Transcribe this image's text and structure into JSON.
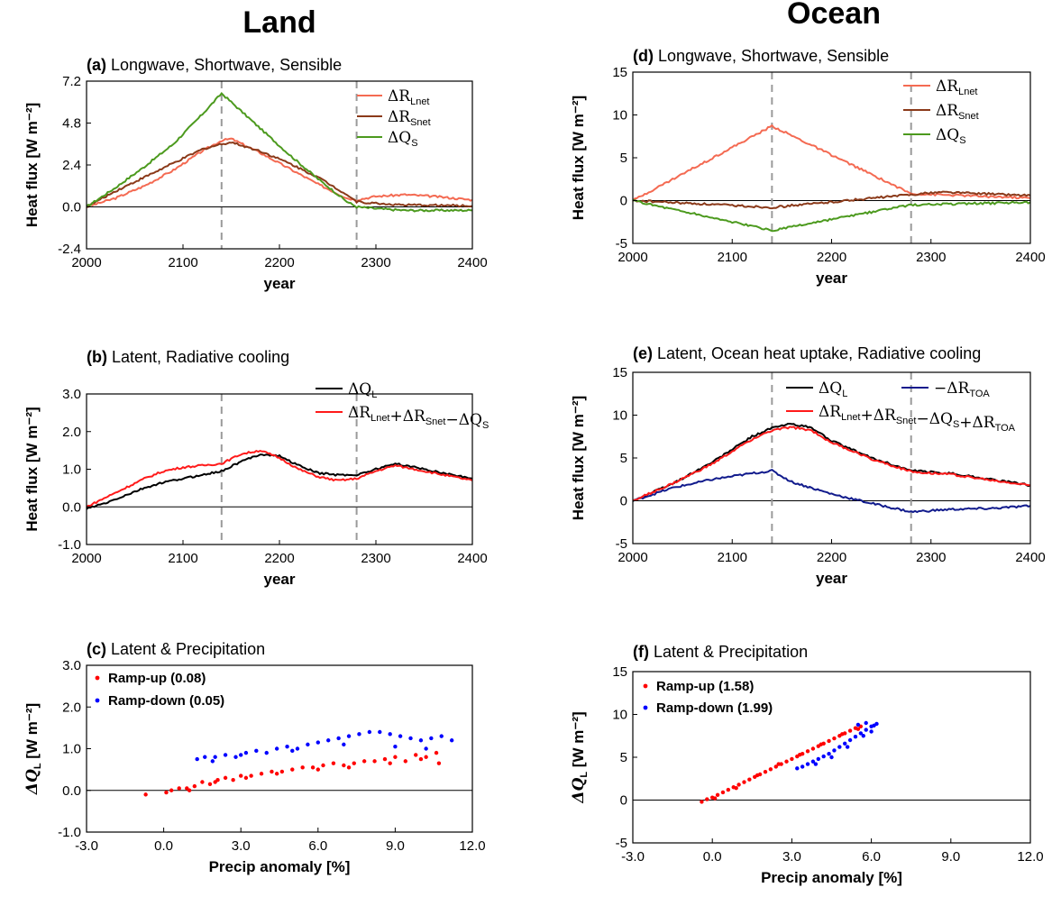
{
  "columns": [
    {
      "title": "Land"
    },
    {
      "title": "Ocean"
    }
  ],
  "colors": {
    "lw": "#f46a52",
    "sw": "#8b3a1a",
    "qs": "#4c9a1e",
    "latent": "#000000",
    "residual": "#ff1a1a",
    "toa": "#101a8c",
    "ramp_up": "#ff0000",
    "ramp_down": "#0000ff",
    "marker_line": "#9a9a9a"
  },
  "chart_data": [
    {
      "id": "a",
      "type": "line",
      "tag": "(a)",
      "title": "Longwave, Shortwave, Sensible",
      "xlabel": "year",
      "ylabel": "Heat flux [W m⁻²]",
      "xlim": [
        2000,
        2400
      ],
      "ylim": [
        -2.4,
        7.2
      ],
      "xticks": [
        "2000",
        "2100",
        "2200",
        "2300",
        "2400"
      ],
      "yticks": [
        "-2.4",
        "0.0",
        "2.4",
        "4.8",
        "7.2"
      ],
      "vlines": [
        2140,
        2280
      ],
      "series": [
        {
          "name": "ΔR",
          "sub": "Lnet",
          "color_key": "lw",
          "x": [
            2000,
            2030,
            2060,
            2090,
            2120,
            2140,
            2150,
            2180,
            2210,
            2240,
            2270,
            2280,
            2300,
            2330,
            2360,
            2400
          ],
          "y": [
            0.0,
            0.5,
            1.2,
            2.1,
            3.2,
            3.8,
            3.9,
            3.1,
            2.2,
            1.3,
            0.5,
            0.4,
            0.6,
            0.7,
            0.6,
            0.4
          ]
        },
        {
          "name": "ΔR",
          "sub": "Snet",
          "color_key": "sw",
          "x": [
            2000,
            2030,
            2060,
            2090,
            2120,
            2140,
            2150,
            2180,
            2210,
            2240,
            2270,
            2280,
            2300,
            2330,
            2360,
            2400
          ],
          "y": [
            0.0,
            0.9,
            1.7,
            2.5,
            3.3,
            3.6,
            3.7,
            3.2,
            2.5,
            1.7,
            0.7,
            0.3,
            0.2,
            0.1,
            0.1,
            0.05
          ]
        },
        {
          "name": "ΔQ",
          "sub": "S",
          "color_key": "qs",
          "x": [
            2000,
            2030,
            2060,
            2090,
            2120,
            2140,
            2150,
            2180,
            2210,
            2240,
            2270,
            2280,
            2300,
            2330,
            2360,
            2400
          ],
          "y": [
            0.0,
            1.1,
            2.3,
            3.6,
            5.3,
            6.5,
            6.0,
            4.5,
            3.0,
            1.6,
            0.3,
            0.0,
            -0.1,
            -0.2,
            -0.2,
            -0.2
          ]
        }
      ]
    },
    {
      "id": "b",
      "type": "line",
      "tag": "(b)",
      "title": "Latent, Radiative cooling",
      "xlabel": "year",
      "ylabel": "Heat flux [W m⁻²]",
      "xlim": [
        2000,
        2400
      ],
      "ylim": [
        -1.0,
        3.0
      ],
      "xticks": [
        "2000",
        "2100",
        "2200",
        "2300",
        "2400"
      ],
      "yticks": [
        "-1.0",
        "0.0",
        "1.0",
        "2.0",
        "3.0"
      ],
      "vlines": [
        2140,
        2280
      ],
      "series": [
        {
          "name": "ΔQ",
          "sub": "L",
          "color_key": "latent",
          "x": [
            2000,
            2020,
            2040,
            2060,
            2080,
            2100,
            2120,
            2140,
            2160,
            2180,
            2200,
            2220,
            2240,
            2260,
            2280,
            2300,
            2320,
            2340,
            2360,
            2380,
            2400
          ],
          "y": [
            -0.05,
            0.1,
            0.3,
            0.5,
            0.65,
            0.75,
            0.85,
            0.95,
            1.2,
            1.4,
            1.35,
            1.1,
            0.9,
            0.85,
            0.85,
            1.0,
            1.15,
            1.05,
            0.95,
            0.85,
            0.75
          ]
        },
        {
          "name": "ΔR",
          "sub": "Lnet",
          "expr": "ΔR_Lnet+ΔR_Snet−ΔQ_S",
          "color_key": "residual",
          "x": [
            2000,
            2020,
            2040,
            2060,
            2080,
            2100,
            2120,
            2140,
            2160,
            2180,
            2200,
            2220,
            2240,
            2260,
            2280,
            2300,
            2320,
            2340,
            2360,
            2380,
            2400
          ],
          "y": [
            0.0,
            0.25,
            0.5,
            0.75,
            0.95,
            1.05,
            1.1,
            1.15,
            1.4,
            1.5,
            1.3,
            1.0,
            0.8,
            0.7,
            0.75,
            0.95,
            1.1,
            1.0,
            0.9,
            0.8,
            0.7
          ]
        }
      ]
    },
    {
      "id": "c",
      "type": "scatter",
      "tag": "(c)",
      "title": "Latent & Precipitation",
      "xlabel": "Precip anomaly [%]",
      "ylabel": "ΔQL [W m⁻²]",
      "xlim": [
        -3.0,
        12.0
      ],
      "ylim": [
        -1.0,
        3.0
      ],
      "xticks": [
        "-3.0",
        "0.0",
        "3.0",
        "6.0",
        "9.0",
        "12.0"
      ],
      "yticks": [
        "-1.0",
        "0.0",
        "1.0",
        "2.0",
        "3.0"
      ],
      "series": [
        {
          "name": "Ramp-up (0.08)",
          "color_key": "ramp_up",
          "points": [
            [
              -0.7,
              -0.1
            ],
            [
              0.1,
              -0.05
            ],
            [
              0.3,
              0.0
            ],
            [
              0.6,
              0.05
            ],
            [
              0.9,
              0.05
            ],
            [
              1.2,
              0.1
            ],
            [
              1.5,
              0.2
            ],
            [
              1.8,
              0.15
            ],
            [
              2.1,
              0.25
            ],
            [
              2.4,
              0.3
            ],
            [
              2.7,
              0.25
            ],
            [
              3.0,
              0.35
            ],
            [
              3.4,
              0.35
            ],
            [
              3.8,
              0.4
            ],
            [
              4.2,
              0.45
            ],
            [
              4.6,
              0.45
            ],
            [
              5.0,
              0.5
            ],
            [
              5.4,
              0.55
            ],
            [
              5.8,
              0.55
            ],
            [
              6.2,
              0.6
            ],
            [
              6.6,
              0.65
            ],
            [
              7.0,
              0.6
            ],
            [
              7.4,
              0.65
            ],
            [
              7.8,
              0.7
            ],
            [
              8.2,
              0.7
            ],
            [
              8.6,
              0.75
            ],
            [
              9.0,
              0.8
            ],
            [
              9.4,
              0.7
            ],
            [
              9.8,
              0.85
            ],
            [
              10.2,
              0.8
            ],
            [
              10.6,
              0.9
            ],
            [
              1.0,
              0.0
            ],
            [
              2.0,
              0.2
            ],
            [
              3.2,
              0.3
            ],
            [
              4.4,
              0.4
            ],
            [
              6.0,
              0.5
            ],
            [
              7.2,
              0.55
            ],
            [
              8.8,
              0.65
            ],
            [
              10.0,
              0.75
            ],
            [
              10.7,
              0.65
            ]
          ]
        },
        {
          "name": "Ramp-down (0.05)",
          "color_key": "ramp_down",
          "points": [
            [
              1.3,
              0.75
            ],
            [
              1.6,
              0.8
            ],
            [
              2.0,
              0.8
            ],
            [
              2.4,
              0.85
            ],
            [
              2.8,
              0.8
            ],
            [
              3.2,
              0.9
            ],
            [
              3.6,
              0.95
            ],
            [
              4.0,
              0.9
            ],
            [
              4.4,
              1.0
            ],
            [
              4.8,
              1.05
            ],
            [
              5.2,
              1.0
            ],
            [
              5.6,
              1.1
            ],
            [
              6.0,
              1.15
            ],
            [
              6.4,
              1.2
            ],
            [
              6.8,
              1.25
            ],
            [
              7.2,
              1.3
            ],
            [
              7.6,
              1.35
            ],
            [
              8.0,
              1.4
            ],
            [
              8.4,
              1.4
            ],
            [
              8.8,
              1.35
            ],
            [
              9.2,
              1.3
            ],
            [
              9.6,
              1.25
            ],
            [
              10.0,
              1.2
            ],
            [
              10.4,
              1.25
            ],
            [
              10.8,
              1.3
            ],
            [
              11.2,
              1.2
            ],
            [
              1.9,
              0.7
            ],
            [
              3.0,
              0.85
            ],
            [
              5.0,
              0.95
            ],
            [
              7.0,
              1.1
            ],
            [
              9.0,
              1.05
            ],
            [
              10.2,
              1.0
            ]
          ]
        }
      ]
    },
    {
      "id": "d",
      "type": "line",
      "tag": "(d)",
      "title": "Longwave, Shortwave, Sensible",
      "xlabel": "year",
      "ylabel": "Heat flux [W m⁻²]",
      "xlim": [
        2000,
        2400
      ],
      "ylim": [
        -5,
        15
      ],
      "xticks": [
        "2000",
        "2100",
        "2200",
        "2300",
        "2400"
      ],
      "yticks": [
        "-5",
        "0",
        "5",
        "10",
        "15"
      ],
      "vlines": [
        2140,
        2280
      ],
      "series": [
        {
          "name": "ΔR",
          "sub": "Lnet",
          "color_key": "lw",
          "x": [
            2000,
            2140,
            2280,
            2400
          ],
          "y": [
            0.0,
            8.7,
            0.8,
            0.3
          ]
        },
        {
          "name": "ΔR",
          "sub": "Snet",
          "color_key": "sw",
          "x": [
            2000,
            2140,
            2280,
            2310,
            2400
          ],
          "y": [
            0.0,
            -0.8,
            0.7,
            1.0,
            0.6
          ]
        },
        {
          "name": "ΔQ",
          "sub": "S",
          "color_key": "qs",
          "x": [
            2000,
            2140,
            2280,
            2400
          ],
          "y": [
            0.0,
            -3.5,
            -0.5,
            -0.2
          ]
        }
      ]
    },
    {
      "id": "e",
      "type": "line",
      "tag": "(e)",
      "title": "Latent, Ocean heat uptake, Radiative cooling",
      "xlabel": "year",
      "ylabel": "Heat flux [W m⁻²]",
      "xlim": [
        2000,
        2400
      ],
      "ylim": [
        -5,
        15
      ],
      "xticks": [
        "2000",
        "2100",
        "2200",
        "2300",
        "2400"
      ],
      "yticks": [
        "-5",
        "0",
        "5",
        "10",
        "15"
      ],
      "vlines": [
        2140,
        2280
      ],
      "series": [
        {
          "name": "ΔQ",
          "sub": "L",
          "color_key": "latent",
          "x": [
            2000,
            2040,
            2080,
            2120,
            2140,
            2160,
            2180,
            2200,
            2240,
            2280,
            2320,
            2360,
            2400
          ],
          "y": [
            0.0,
            2.0,
            4.5,
            7.5,
            8.5,
            9.0,
            8.5,
            7.0,
            5.0,
            3.5,
            3.2,
            2.5,
            1.8
          ]
        },
        {
          "name": "−ΔR",
          "sub": "TOA",
          "color_key": "toa",
          "x": [
            2000,
            2040,
            2080,
            2120,
            2140,
            2160,
            2200,
            2240,
            2280,
            2320,
            2360,
            2400
          ],
          "y": [
            0.0,
            1.5,
            2.5,
            3.2,
            3.5,
            2.2,
            0.8,
            -0.3,
            -1.3,
            -1.0,
            -0.9,
            -0.6
          ]
        },
        {
          "name": "ΔR",
          "sub": "Lnet",
          "expr": "ΔR_Lnet+ΔR_Snet−ΔQ_S+ΔR_TOA",
          "color_key": "residual",
          "x": [
            2000,
            2040,
            2080,
            2120,
            2140,
            2160,
            2180,
            2200,
            2240,
            2280,
            2320,
            2360,
            2400
          ],
          "y": [
            0.0,
            2.0,
            4.3,
            7.2,
            8.2,
            8.6,
            8.2,
            6.8,
            4.9,
            3.4,
            3.1,
            2.4,
            1.8
          ]
        }
      ]
    },
    {
      "id": "f",
      "type": "scatter",
      "tag": "(f)",
      "title": "Latent & Precipitation",
      "xlabel": "Precip anomaly [%]",
      "ylabel": "ΔQL [W m⁻²]",
      "xlim": [
        -3.0,
        12.0
      ],
      "ylim": [
        -5,
        15
      ],
      "xticks": [
        "-3.0",
        "0.0",
        "3.0",
        "6.0",
        "9.0",
        "12.0"
      ],
      "yticks": [
        "-5",
        "0",
        "5",
        "10",
        "15"
      ],
      "series": [
        {
          "name": "Ramp-up (1.58)",
          "color_key": "ramp_up",
          "points": [
            [
              -0.4,
              -0.2
            ],
            [
              -0.2,
              0.1
            ],
            [
              0.0,
              0.3
            ],
            [
              0.2,
              0.6
            ],
            [
              0.4,
              0.9
            ],
            [
              0.6,
              1.2
            ],
            [
              0.8,
              1.5
            ],
            [
              1.0,
              1.8
            ],
            [
              1.2,
              2.1
            ],
            [
              1.4,
              2.4
            ],
            [
              1.6,
              2.7
            ],
            [
              1.8,
              3.0
            ],
            [
              2.0,
              3.3
            ],
            [
              2.2,
              3.6
            ],
            [
              2.4,
              3.9
            ],
            [
              2.6,
              4.2
            ],
            [
              2.8,
              4.5
            ],
            [
              3.0,
              4.8
            ],
            [
              3.2,
              5.1
            ],
            [
              3.4,
              5.4
            ],
            [
              3.6,
              5.7
            ],
            [
              3.8,
              6.0
            ],
            [
              4.0,
              6.3
            ],
            [
              4.2,
              6.6
            ],
            [
              4.4,
              6.9
            ],
            [
              4.6,
              7.2
            ],
            [
              4.8,
              7.5
            ],
            [
              5.0,
              7.8
            ],
            [
              5.2,
              8.1
            ],
            [
              5.4,
              8.4
            ],
            [
              5.6,
              8.6
            ],
            [
              0.1,
              0.2
            ],
            [
              0.9,
              1.4
            ],
            [
              1.7,
              2.9
            ],
            [
              2.5,
              4.2
            ],
            [
              3.3,
              5.3
            ],
            [
              4.1,
              6.5
            ],
            [
              4.9,
              7.7
            ],
            [
              5.5,
              8.3
            ]
          ]
        },
        {
          "name": "Ramp-down (1.99)",
          "color_key": "ramp_down",
          "points": [
            [
              3.2,
              3.7
            ],
            [
              3.4,
              3.9
            ],
            [
              3.6,
              4.2
            ],
            [
              3.8,
              4.5
            ],
            [
              4.0,
              4.8
            ],
            [
              4.2,
              5.1
            ],
            [
              4.4,
              5.4
            ],
            [
              4.6,
              5.8
            ],
            [
              4.8,
              6.2
            ],
            [
              5.0,
              6.6
            ],
            [
              5.2,
              7.0
            ],
            [
              5.4,
              7.4
            ],
            [
              5.6,
              7.8
            ],
            [
              5.8,
              8.2
            ],
            [
              6.0,
              8.6
            ],
            [
              6.2,
              8.9
            ],
            [
              5.5,
              8.8
            ],
            [
              5.8,
              9.0
            ],
            [
              6.1,
              8.7
            ],
            [
              4.5,
              5.0
            ],
            [
              3.9,
              4.2
            ],
            [
              5.1,
              6.2
            ],
            [
              5.7,
              7.5
            ],
            [
              6.0,
              8.0
            ]
          ]
        }
      ]
    }
  ]
}
